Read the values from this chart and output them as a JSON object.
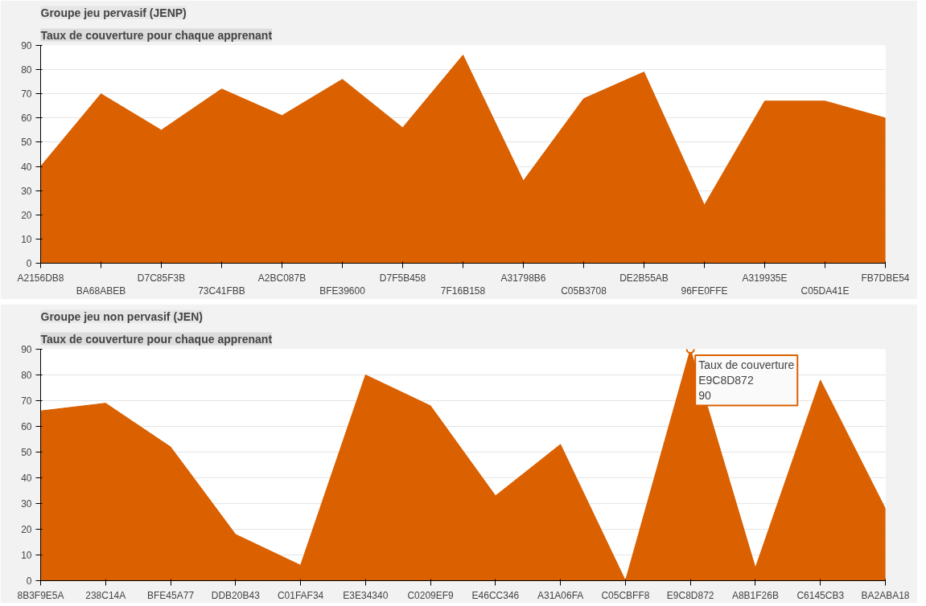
{
  "chart_data": [
    {
      "type": "area",
      "title": "Groupe jeu pervasif (JENP)",
      "subtitle": "Taux de couverture pour chaque apprenant",
      "categories": [
        "A2156DB8",
        "BA68ABEB",
        "D7C85F3B",
        "73C41FBB",
        "A2BC087B",
        "BFE39600",
        "D7F5B458",
        "7F16B158",
        "A31798B6",
        "C05B3708",
        "DE2B55AB",
        "96FE0FFE",
        "A319935E",
        "C05DA41E",
        "FB7DBE54"
      ],
      "values": [
        40,
        70,
        55,
        72,
        61,
        76,
        56,
        86,
        34,
        68,
        79,
        24,
        67,
        67,
        60
      ],
      "color": "#da6000",
      "ylim": [
        0,
        90
      ],
      "yticks": [
        0,
        10,
        20,
        30,
        40,
        50,
        60,
        70,
        80,
        90
      ],
      "grid": "y"
    },
    {
      "type": "area",
      "title": "Groupe jeu non pervasif (JEN)",
      "subtitle": "Taux de couverture pour chaque apprenant",
      "categories": [
        "8B3F9E5A",
        "238C14A",
        "BFE45A77",
        "DDB20B43",
        "C01FAF34",
        "E3E34340",
        "C0209EF9",
        "E46CC346",
        "A31A06FA",
        "C05CBFF8",
        "E9C8D872",
        "A8B1F26B",
        "C6145CB3",
        "BA2ABA18"
      ],
      "values": [
        66,
        69,
        52,
        18,
        6,
        80,
        68,
        33,
        53,
        0,
        90,
        5,
        78,
        28
      ],
      "color": "#da6000",
      "ylim": [
        0,
        90
      ],
      "yticks": [
        0,
        10,
        20,
        30,
        40,
        50,
        60,
        70,
        80,
        90
      ],
      "grid": "y",
      "annotations": [
        {
          "text": "Taux de couverture\nE9C8D872\n90",
          "x": "E9C8D872",
          "y": 90
        }
      ]
    }
  ]
}
